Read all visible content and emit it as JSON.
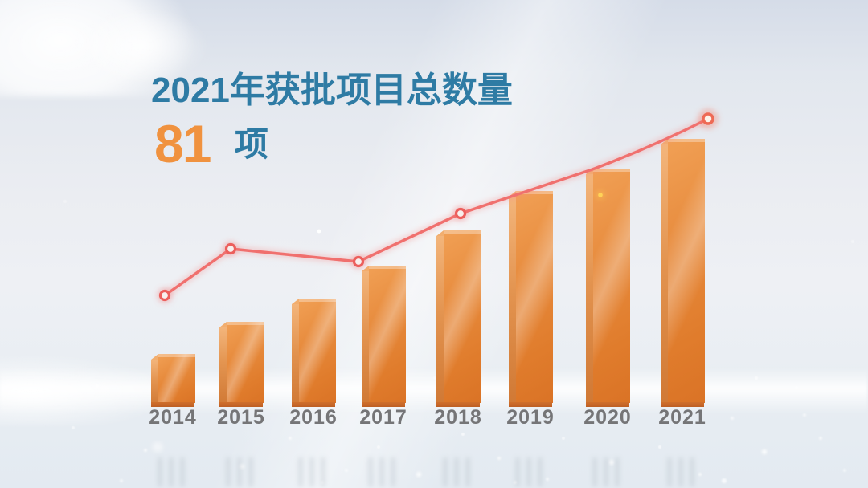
{
  "header": {
    "title": "2021年获批项目总数量",
    "count": "81",
    "count_unit": "项"
  },
  "colors": {
    "title_teal": "#2e7ba4",
    "count_orange": "#f0923f",
    "bar_orange": "#e78b3d",
    "bar_orange_dark": "#d07834",
    "line_pink": "#f0706e",
    "marker_red": "#ec5f5c",
    "year_gray": "#757577"
  },
  "chart_data": {
    "type": "bar",
    "title": "2021年获批项目总数量",
    "unit": "项",
    "categories": [
      "2014",
      "2015",
      "2016",
      "2017",
      "2018",
      "2019",
      "2020",
      "2021"
    ],
    "values": [
      15,
      25,
      32,
      42,
      53,
      65,
      72,
      81
    ],
    "value_note": "Only the 2021 total (81 项) is labeled in the image; 2014-2020 values are estimated from relative bar heights.",
    "xlabel": "",
    "ylabel": "",
    "grid": false,
    "legend": "none",
    "overlay_line": "decorative pink rising trend line with ring markers, ending in a glowing dot above the 2021 bar"
  }
}
